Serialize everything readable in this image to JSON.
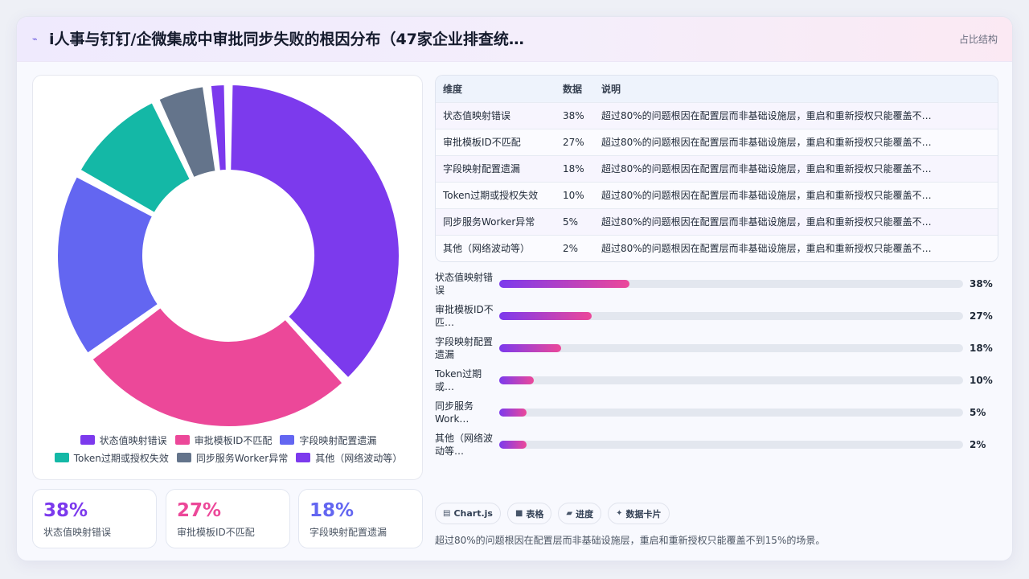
{
  "header": {
    "icon": "trend-line-icon",
    "title": "i人事与钉钉/企微集成中审批同步失败的根因分布（47家企业排查统…",
    "badge": "占比结构"
  },
  "colors": {
    "purple": "#7c3aed",
    "pink": "#ec4899",
    "indigo": "#6366f1",
    "teal": "#14b8a6",
    "slate": "#64748b",
    "violet": "#7c3aed"
  },
  "chart_data": {
    "type": "pie",
    "donut": true,
    "categories": [
      "状态值映射错误",
      "审批模板ID不匹配",
      "字段映射配置遗漏",
      "Token过期或授权失效",
      "同步服务Worker异常",
      "其他（网络波动等）"
    ],
    "values": [
      38,
      27,
      18,
      10,
      5,
      2
    ],
    "unit": "%",
    "colors": [
      "#7c3aed",
      "#ec4899",
      "#6366f1",
      "#14b8a6",
      "#64748b",
      "#7c3aed"
    ],
    "legend": "bottom"
  },
  "stats": [
    {
      "value": "38%",
      "label": "状态值映射错误",
      "color": "#7c3aed"
    },
    {
      "value": "27%",
      "label": "审批模板ID不匹配",
      "color": "#ec4899"
    },
    {
      "value": "18%",
      "label": "字段映射配置遗漏",
      "color": "#6366f1"
    }
  ],
  "table": {
    "headers": [
      "维度",
      "数据",
      "说明"
    ],
    "rows": [
      [
        "状态值映射错误",
        "38%",
        "超过80%的问题根因在配置层而非基础设施层，重启和重新授权只能覆盖不…"
      ],
      [
        "审批模板ID不匹配",
        "27%",
        "超过80%的问题根因在配置层而非基础设施层，重启和重新授权只能覆盖不…"
      ],
      [
        "字段映射配置遗漏",
        "18%",
        "超过80%的问题根因在配置层而非基础设施层，重启和重新授权只能覆盖不…"
      ],
      [
        "Token过期或授权失效",
        "10%",
        "超过80%的问题根因在配置层而非基础设施层，重启和重新授权只能覆盖不…"
      ],
      [
        "同步服务Worker异常",
        "5%",
        "超过80%的问题根因在配置层而非基础设施层，重启和重新授权只能覆盖不…"
      ],
      [
        "其他（网络波动等）",
        "2%",
        "超过80%的问题根因在配置层而非基础设施层，重启和重新授权只能覆盖不…"
      ]
    ]
  },
  "progress": [
    {
      "label": "状态值映射错误",
      "value_label": "38%",
      "fraction": 0.38
    },
    {
      "label": "审批模板ID不匹…",
      "value_label": "27%",
      "fraction": 0.27
    },
    {
      "label": "字段映射配置遗漏",
      "value_label": "18%",
      "fraction": 0.18
    },
    {
      "label": "Token过期或…",
      "value_label": "10%",
      "fraction": 0.1
    },
    {
      "label": "同步服务Work…",
      "value_label": "5%",
      "fraction": 0.05
    },
    {
      "label": "其他（网络波动等…",
      "value_label": "2%",
      "fraction": 0.02
    }
  ],
  "chips": [
    {
      "icon": "chart-icon",
      "glyph": "▤",
      "label": "Chart.js"
    },
    {
      "icon": "table-icon",
      "glyph": "■",
      "label": "表格"
    },
    {
      "icon": "progress-icon",
      "glyph": "▰",
      "label": "进度"
    },
    {
      "icon": "sparkle-icon",
      "glyph": "✦",
      "label": "数据卡片"
    }
  ],
  "footnote": "超过80%的问题根因在配置层而非基础设施层，重启和重新授权只能覆盖不到15%的场景。"
}
